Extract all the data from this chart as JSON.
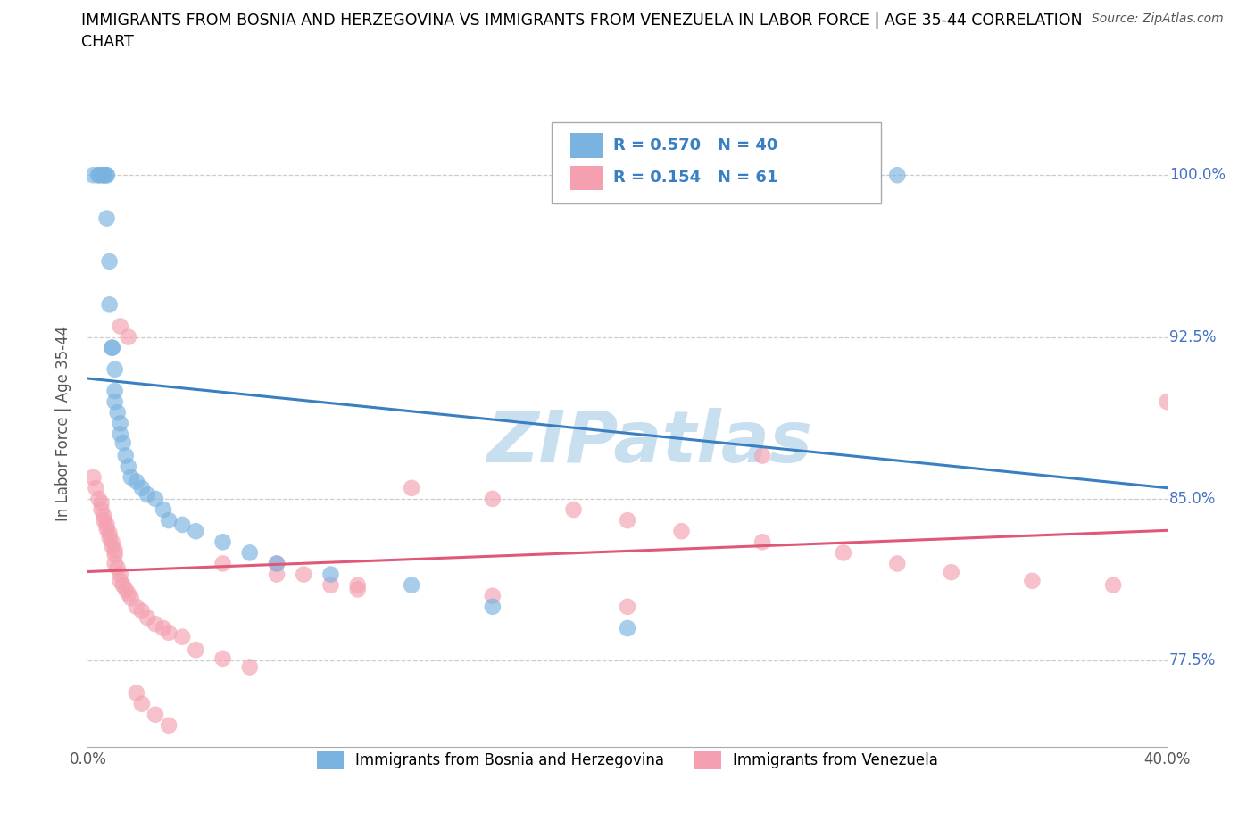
{
  "title": "IMMIGRANTS FROM BOSNIA AND HERZEGOVINA VS IMMIGRANTS FROM VENEZUELA IN LABOR FORCE | AGE 35-44 CORRELATION\nCHART",
  "source": "Source: ZipAtlas.com",
  "ylabel": "In Labor Force | Age 35-44",
  "xlim": [
    0.0,
    0.4
  ],
  "ylim": [
    0.735,
    1.035
  ],
  "yticks": [
    0.775,
    0.85,
    0.925,
    1.0
  ],
  "yticklabels": [
    "77.5%",
    "85.0%",
    "92.5%",
    "100.0%"
  ],
  "xticks": [
    0.0,
    0.4
  ],
  "xticklabels": [
    "0.0%",
    "40.0%"
  ],
  "bosnia_color": "#7ab3e0",
  "venezuela_color": "#f4a0b0",
  "line_bosnia_color": "#3a7fc1",
  "line_venezuela_color": "#e05878",
  "bosnia_R": 0.57,
  "bosnia_N": 40,
  "venezuela_R": 0.154,
  "venezuela_N": 61,
  "watermark_color": "#c8dff0",
  "bosnia_x": [
    0.002,
    0.004,
    0.004,
    0.005,
    0.006,
    0.006,
    0.007,
    0.007,
    0.007,
    0.008,
    0.008,
    0.009,
    0.009,
    0.01,
    0.01,
    0.01,
    0.011,
    0.012,
    0.012,
    0.013,
    0.014,
    0.015,
    0.016,
    0.018,
    0.02,
    0.022,
    0.025,
    0.028,
    0.03,
    0.035,
    0.04,
    0.05,
    0.06,
    0.07,
    0.09,
    0.12,
    0.15,
    0.2,
    0.25,
    0.3
  ],
  "bosnia_y": [
    1.0,
    1.0,
    1.0,
    1.0,
    1.0,
    1.0,
    1.0,
    1.0,
    0.98,
    0.96,
    0.94,
    0.92,
    0.92,
    0.91,
    0.9,
    0.895,
    0.89,
    0.885,
    0.88,
    0.876,
    0.87,
    0.865,
    0.86,
    0.858,
    0.855,
    0.852,
    0.85,
    0.845,
    0.84,
    0.838,
    0.835,
    0.83,
    0.825,
    0.82,
    0.815,
    0.81,
    0.8,
    0.79,
    1.0,
    1.0
  ],
  "venezuela_x": [
    0.002,
    0.003,
    0.004,
    0.005,
    0.005,
    0.006,
    0.006,
    0.007,
    0.007,
    0.008,
    0.008,
    0.009,
    0.009,
    0.01,
    0.01,
    0.01,
    0.011,
    0.012,
    0.012,
    0.013,
    0.014,
    0.015,
    0.016,
    0.018,
    0.02,
    0.022,
    0.025,
    0.028,
    0.03,
    0.035,
    0.04,
    0.05,
    0.06,
    0.07,
    0.08,
    0.09,
    0.1,
    0.12,
    0.15,
    0.18,
    0.2,
    0.22,
    0.25,
    0.28,
    0.3,
    0.32,
    0.35,
    0.38,
    0.4,
    0.012,
    0.015,
    0.018,
    0.02,
    0.025,
    0.03,
    0.05,
    0.07,
    0.1,
    0.15,
    0.2,
    0.25
  ],
  "venezuela_y": [
    0.86,
    0.855,
    0.85,
    0.848,
    0.845,
    0.842,
    0.84,
    0.838,
    0.836,
    0.834,
    0.832,
    0.83,
    0.828,
    0.826,
    0.824,
    0.82,
    0.818,
    0.815,
    0.812,
    0.81,
    0.808,
    0.806,
    0.804,
    0.8,
    0.798,
    0.795,
    0.792,
    0.79,
    0.788,
    0.786,
    0.78,
    0.776,
    0.772,
    0.82,
    0.815,
    0.81,
    0.808,
    0.855,
    0.85,
    0.845,
    0.84,
    0.835,
    0.83,
    0.825,
    0.82,
    0.816,
    0.812,
    0.81,
    0.895,
    0.93,
    0.925,
    0.76,
    0.755,
    0.75,
    0.745,
    0.82,
    0.815,
    0.81,
    0.805,
    0.8,
    0.87
  ]
}
